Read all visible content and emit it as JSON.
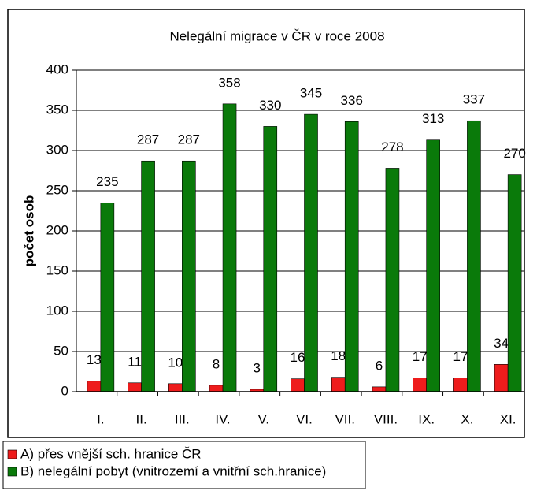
{
  "chart_data": {
    "type": "bar",
    "title": "Nelegální migrace v ČR v roce 2008",
    "y_label": "počet osob",
    "categories": [
      "I.",
      "II.",
      "III.",
      "IV.",
      "V.",
      "VI.",
      "VII.",
      "VIII.",
      "IX.",
      "X.",
      "XI."
    ],
    "series": [
      {
        "name": "A) přes vnější sch. hranice ČR",
        "color": "#ee1c1c",
        "values": [
          13,
          11,
          10,
          8,
          3,
          16,
          18,
          6,
          17,
          17,
          34
        ]
      },
      {
        "name": "B) nelegální pobyt (vnitrozemí a vnitřní sch.hranice)",
        "color": "#0a7a0a",
        "values": [
          235,
          287,
          287,
          358,
          330,
          345,
          336,
          278,
          313,
          337,
          270
        ]
      }
    ],
    "ylim": [
      0,
      400
    ],
    "yticks": [
      0,
      50,
      100,
      150,
      200,
      250,
      300,
      350,
      400
    ],
    "grid": true
  }
}
